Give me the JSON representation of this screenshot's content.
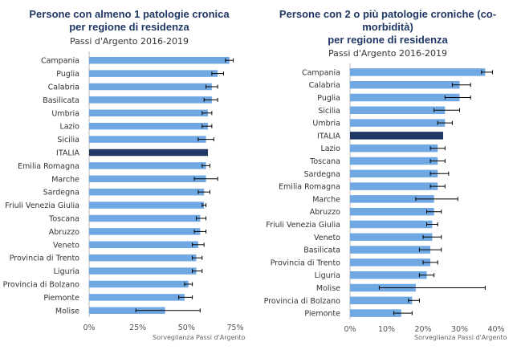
{
  "chart_data": [
    {
      "type": "bar",
      "orientation": "horizontal",
      "title": "Persone con almeno 1 patologie cronica\nper regione di residenza",
      "subtitle": "Passi d'Argento 2016-2019",
      "source": "Sorveglianza Passi d'Argento",
      "xlim": [
        0,
        75
      ],
      "ticks": [
        "0%",
        "25%",
        "50%",
        "75%"
      ],
      "highlight": "ITALIA",
      "colors": {
        "bar": "#6fa8e3",
        "highlight": "#1f3864",
        "error": "#000000"
      },
      "categories": [
        "Campania",
        "Puglia",
        "Calabria",
        "Basilicata",
        "Umbria",
        "Lazio",
        "Sicilia",
        "ITALIA",
        "Emilia Romagna",
        "Marche",
        "Sardegna",
        "Friuli Venezia Giulia",
        "Toscana",
        "Abruzzo",
        "Veneto",
        "Provincia di Trento",
        "Liguria",
        "Provincia di Bolzano",
        "Piemonte",
        "Molise"
      ],
      "values": [
        72,
        66,
        63,
        63,
        61,
        61,
        60,
        61,
        60,
        60,
        59,
        59,
        57,
        57,
        56,
        55,
        55,
        51,
        49,
        39
      ],
      "error_low": [
        70,
        63,
        60,
        59,
        58,
        58,
        56,
        60,
        58,
        54,
        56,
        58,
        55,
        54,
        53,
        53,
        53,
        49,
        46,
        24
      ],
      "error_high": [
        74,
        69,
        66,
        66,
        63,
        63,
        64,
        62,
        62,
        66,
        62,
        60,
        60,
        60,
        59,
        58,
        58,
        53,
        53,
        57
      ]
    },
    {
      "type": "bar",
      "orientation": "horizontal",
      "title": "Persone con 2 o più patologie croniche (co-\nmorbidità)\nper regione di residenza",
      "subtitle": "Passi d'Argento 2016-2019",
      "source": "Sorveglianza Passi d'Argento",
      "xlim": [
        0,
        40
      ],
      "ticks": [
        "0%",
        "10%",
        "20%",
        "30%",
        "40%"
      ],
      "highlight": "ITALIA",
      "colors": {
        "bar": "#6fa8e3",
        "highlight": "#1f3864",
        "error": "#000000"
      },
      "categories": [
        "Campania",
        "Calabria",
        "Puglia",
        "Sicilia",
        "Umbria",
        "ITALIA",
        "Lazio",
        "Toscana",
        "Sardegna",
        "Emilia Romagna",
        "Marche",
        "Abruzzo",
        "Friuli Venezia Giulia",
        "Veneto",
        "Basilicata",
        "Provincia di Trento",
        "Liguria",
        "Molise",
        "Provincia di Bolzano",
        "Piemonte"
      ],
      "values": [
        37,
        30,
        30,
        26,
        26,
        25.5,
        24,
        24,
        24,
        24,
        23,
        23,
        22.5,
        22.5,
        22,
        22,
        21,
        18,
        17,
        14
      ],
      "error_low": [
        36,
        28,
        26,
        23,
        24,
        25,
        22,
        22,
        22,
        22,
        18,
        21,
        21,
        20,
        19,
        20,
        19,
        8,
        16,
        12
      ],
      "error_high": [
        39,
        33,
        33,
        30,
        28,
        26,
        26,
        26,
        27,
        26,
        29.5,
        25,
        24,
        25,
        25,
        24,
        23,
        37,
        19,
        17
      ]
    }
  ]
}
